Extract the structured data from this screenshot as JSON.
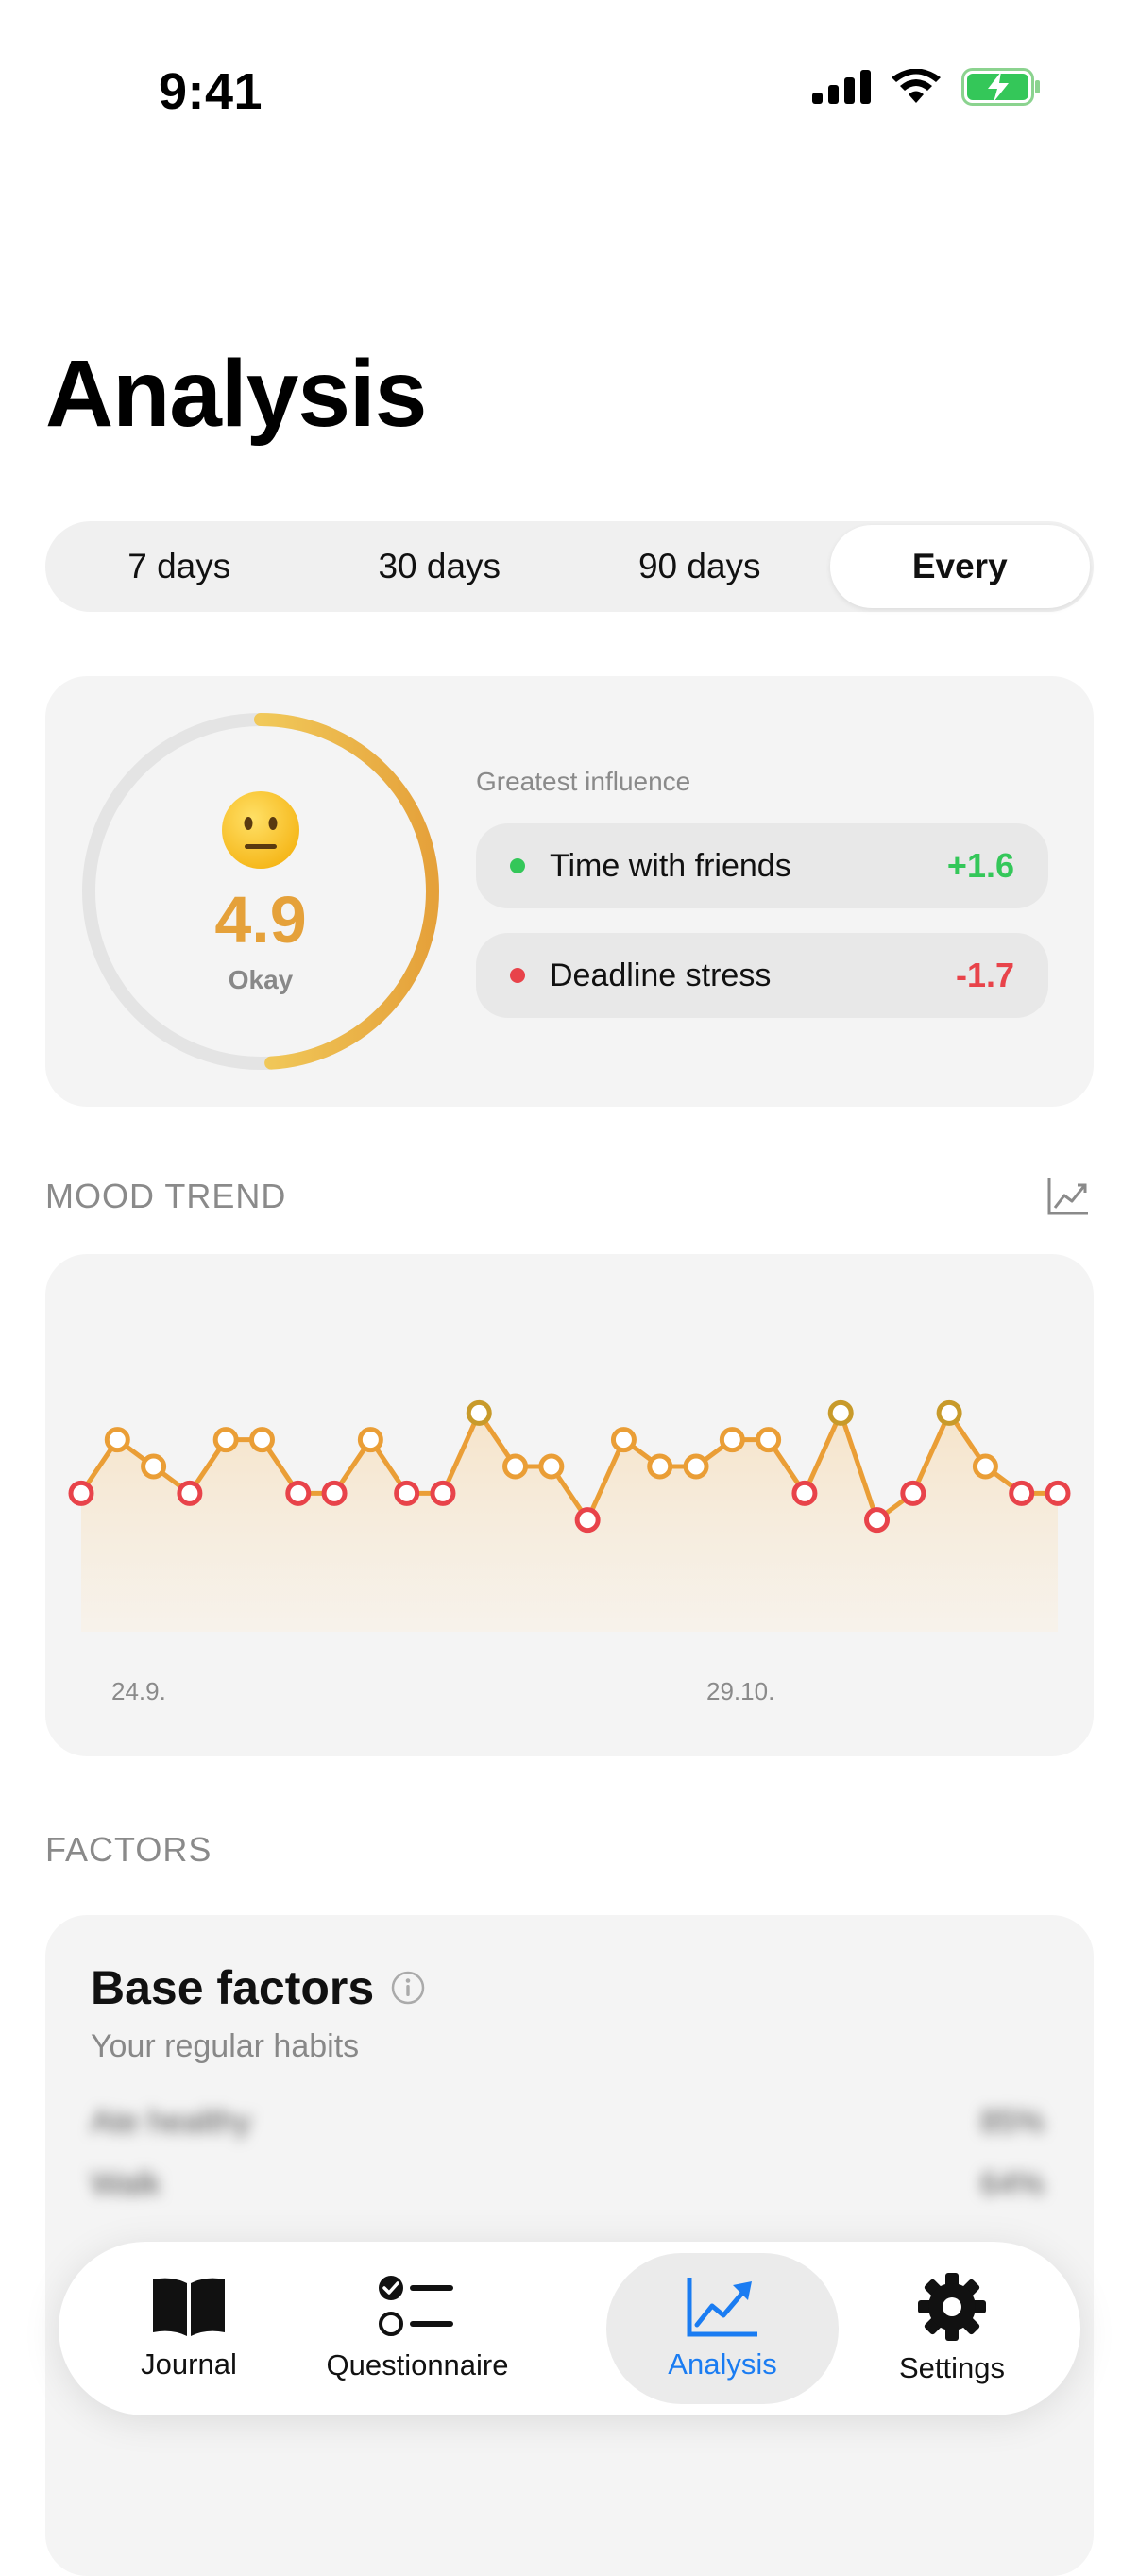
{
  "status_bar": {
    "time": "9:41"
  },
  "page_title": "Analysis",
  "range_tabs": [
    {
      "label": "7 days",
      "active": false
    },
    {
      "label": "30 days",
      "active": false
    },
    {
      "label": "90 days",
      "active": false
    },
    {
      "label": "Every",
      "active": true
    }
  ],
  "score": {
    "emoji": "neutral-face",
    "value": "4.9",
    "word": "Okay",
    "ring_fraction": 0.49,
    "ring_color": "#E5A13A"
  },
  "influence": {
    "label": "Greatest influence",
    "items": [
      {
        "name": "Time with friends",
        "value": "+1.6",
        "color": "#34C759"
      },
      {
        "name": "Deadline stress",
        "value": "-1.7",
        "color": "#E8434A"
      }
    ]
  },
  "mood_trend": {
    "label": "MOOD TREND",
    "icon": "chart-line-icon"
  },
  "chart_data": {
    "type": "line",
    "x_labels": [
      "24.9.",
      "29.10."
    ],
    "values": [
      3,
      5,
      4,
      3,
      5,
      5,
      3,
      3,
      5,
      3,
      3,
      6,
      4,
      4,
      2,
      5,
      4,
      4,
      5,
      5,
      3,
      6,
      2,
      3,
      6,
      4,
      3,
      3
    ],
    "ylim": [
      1,
      7
    ],
    "line_color": "#EA9E36"
  },
  "factors": {
    "label": "FACTORS",
    "title": "Base factors",
    "subtitle": "Your regular habits",
    "rows": [
      {
        "name": "Ate healthy",
        "value": "85%"
      },
      {
        "name": "Walk",
        "value": "64%"
      }
    ]
  },
  "tabbar": [
    {
      "label": "Journal",
      "icon": "book-icon",
      "active": false
    },
    {
      "label": "Questionnaire",
      "icon": "checklist-icon",
      "active": false
    },
    {
      "label": "Analysis",
      "icon": "chart-line-icon",
      "active": true
    },
    {
      "label": "Settings",
      "icon": "gear-icon",
      "active": false
    }
  ]
}
